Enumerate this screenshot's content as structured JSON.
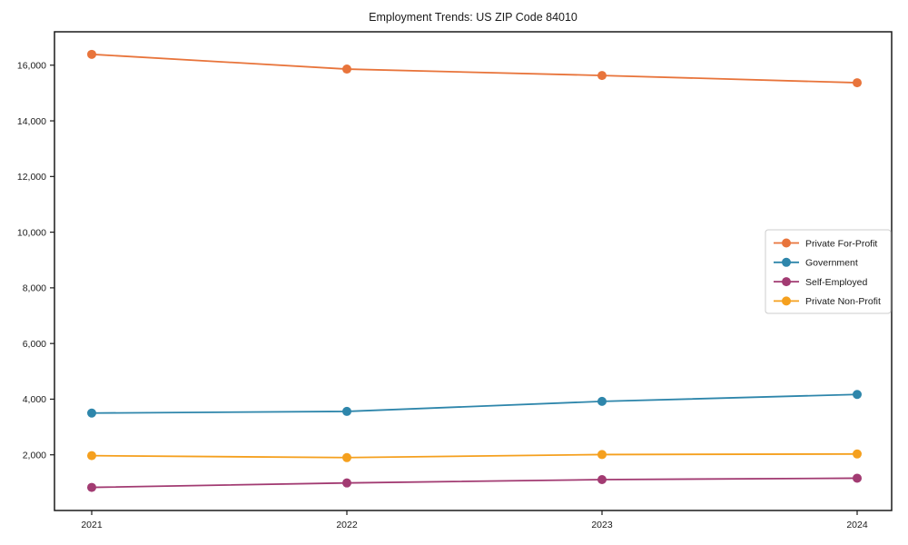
{
  "page": {
    "background": "#ffffff",
    "text_color": "#1a1a1a",
    "axis_color": "#1a1a1a"
  },
  "chart_data": {
    "type": "line",
    "title": "Employment Trends: US ZIP Code 84010",
    "xlabel": "",
    "ylabel": "",
    "categories": [
      "2021",
      "2022",
      "2023",
      "2024"
    ],
    "series": [
      {
        "name": "Private For-Profit",
        "color": "#E8743B",
        "values": [
          16390,
          15860,
          15630,
          15370
        ]
      },
      {
        "name": "Government",
        "color": "#2E86AB",
        "values": [
          3500,
          3560,
          3920,
          4170
        ]
      },
      {
        "name": "Self-Employed",
        "color": "#A23B72",
        "values": [
          830,
          990,
          1110,
          1160
        ]
      },
      {
        "name": "Private Non-Profit",
        "color": "#F5A01E",
        "values": [
          1970,
          1900,
          2010,
          2030
        ]
      }
    ],
    "ylim": [
      0,
      17200
    ],
    "yticks": [
      2000,
      4000,
      6000,
      8000,
      10000,
      12000,
      14000,
      16000
    ],
    "ytick_format": "comma",
    "grid": false,
    "marker": "circle",
    "legend": {
      "position": "middle-right",
      "border_color": "#cccccc",
      "background": "#ffffff",
      "entries": [
        "Private For-Profit",
        "Government",
        "Self-Employed",
        "Private Non-Profit"
      ]
    }
  }
}
